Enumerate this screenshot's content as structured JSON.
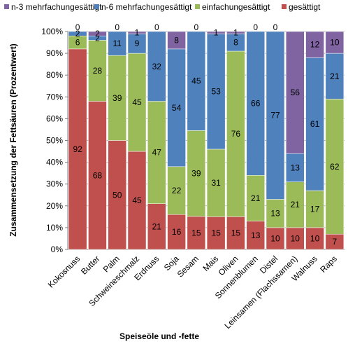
{
  "chart_data": {
    "type": "bar",
    "stacked": true,
    "percent": true,
    "xlabel": "Speiseöle und -fette",
    "ylabel": "Zusammensetzung  der Fettsäuren (Prozentwert)",
    "ylim": [
      0,
      100
    ],
    "yticks": [
      "0%",
      "10%",
      "20%",
      "30%",
      "40%",
      "50%",
      "60%",
      "70%",
      "80%",
      "90%",
      "100%"
    ],
    "legend_position": "top",
    "categories": [
      "Kokosnuss",
      "Butter",
      "Palm",
      "Schweineschmalz",
      "Erdnuss",
      "Soja",
      "Sesam",
      "Mais",
      "Oliven",
      "Sonnenblumen",
      "Distel",
      "Leinsamen (Flachssamen)",
      "Walnuss",
      "Raps"
    ],
    "series": [
      {
        "name": "gesättigt",
        "color": "#c0504d",
        "values": [
          92,
          68,
          50,
          45,
          21,
          16,
          15,
          15,
          15,
          13,
          10,
          10,
          10,
          7
        ]
      },
      {
        "name": "einfachungesättigt",
        "color": "#9bbb59",
        "values": [
          6,
          28,
          39,
          45,
          47,
          22,
          39,
          31,
          76,
          21,
          13,
          21,
          17,
          62
        ]
      },
      {
        "name": "n-6 mehrfachungesättigt",
        "color": "#4f81bd",
        "values": [
          2,
          2,
          11,
          9,
          32,
          54,
          45,
          53,
          8,
          66,
          77,
          13,
          61,
          21
        ]
      },
      {
        "name": "n-3 mehrfachungesättigt",
        "color": "#8064a2",
        "values": [
          0,
          2,
          0,
          1,
          0,
          8,
          0,
          1,
          1,
          0,
          0,
          56,
          12,
          10
        ]
      }
    ]
  }
}
